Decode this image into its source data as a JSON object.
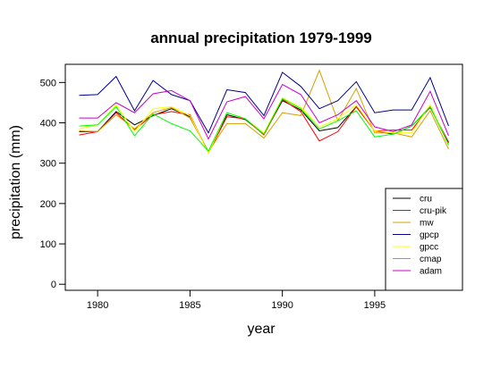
{
  "chart_data": {
    "type": "line",
    "title": "annual precipitation 1979-1999",
    "xlabel": "year",
    "ylabel": "precipitation (mm)",
    "x": [
      1979,
      1980,
      1981,
      1982,
      1983,
      1984,
      1985,
      1986,
      1987,
      1988,
      1989,
      1990,
      1991,
      1992,
      1993,
      1994,
      1995,
      1996,
      1997,
      1998,
      1999
    ],
    "xlim": [
      1978.25,
      1999.75
    ],
    "ylim": [
      -15,
      545
    ],
    "xticks": [
      1980,
      1985,
      1990,
      1995
    ],
    "yticks": [
      0,
      100,
      200,
      300,
      400,
      500
    ],
    "grid": false,
    "legend_position": "bottom-right",
    "series": [
      {
        "name": "cru",
        "color": "#000000",
        "values": [
          378,
          378,
          428,
          395,
          418,
          435,
          415,
          328,
          420,
          408,
          372,
          455,
          432,
          380,
          388,
          440,
          380,
          372,
          392,
          438,
          352
        ]
      },
      {
        "name": "cru-pik",
        "color": "#ff0000",
        "values": [
          370,
          378,
          425,
          383,
          420,
          428,
          420,
          325,
          415,
          410,
          370,
          458,
          428,
          355,
          378,
          440,
          380,
          382,
          382,
          440,
          350
        ]
      },
      {
        "name": "mw",
        "color": "#d4a000",
        "values": [
          380,
          378,
          420,
          385,
          425,
          438,
          412,
          328,
          398,
          398,
          362,
          425,
          418,
          530,
          405,
          485,
          375,
          375,
          365,
          430,
          335
        ]
      },
      {
        "name": "gpcp",
        "color": "#00008b",
        "values": [
          468,
          470,
          515,
          430,
          505,
          470,
          455,
          375,
          482,
          475,
          418,
          525,
          490,
          435,
          455,
          502,
          425,
          432,
          432,
          512,
          392
        ]
      },
      {
        "name": "gpcc",
        "color": "#ffff00",
        "values": [
          385,
          395,
          445,
          378,
          435,
          440,
          418,
          325,
          425,
          410,
          375,
          462,
          438,
          390,
          410,
          445,
          380,
          375,
          375,
          445,
          345
        ]
      },
      {
        "name": "cmap",
        "color": "#00ff00",
        "values": [
          392,
          395,
          440,
          368,
          422,
          398,
          380,
          330,
          425,
          410,
          372,
          460,
          435,
          385,
          405,
          430,
          365,
          372,
          392,
          440,
          345
        ]
      },
      {
        "name": "adam",
        "color": "#cc00cc",
        "values": [
          412,
          412,
          450,
          425,
          472,
          480,
          455,
          360,
          452,
          465,
          410,
          495,
          470,
          400,
          420,
          455,
          390,
          378,
          395,
          478,
          368
        ]
      }
    ]
  }
}
